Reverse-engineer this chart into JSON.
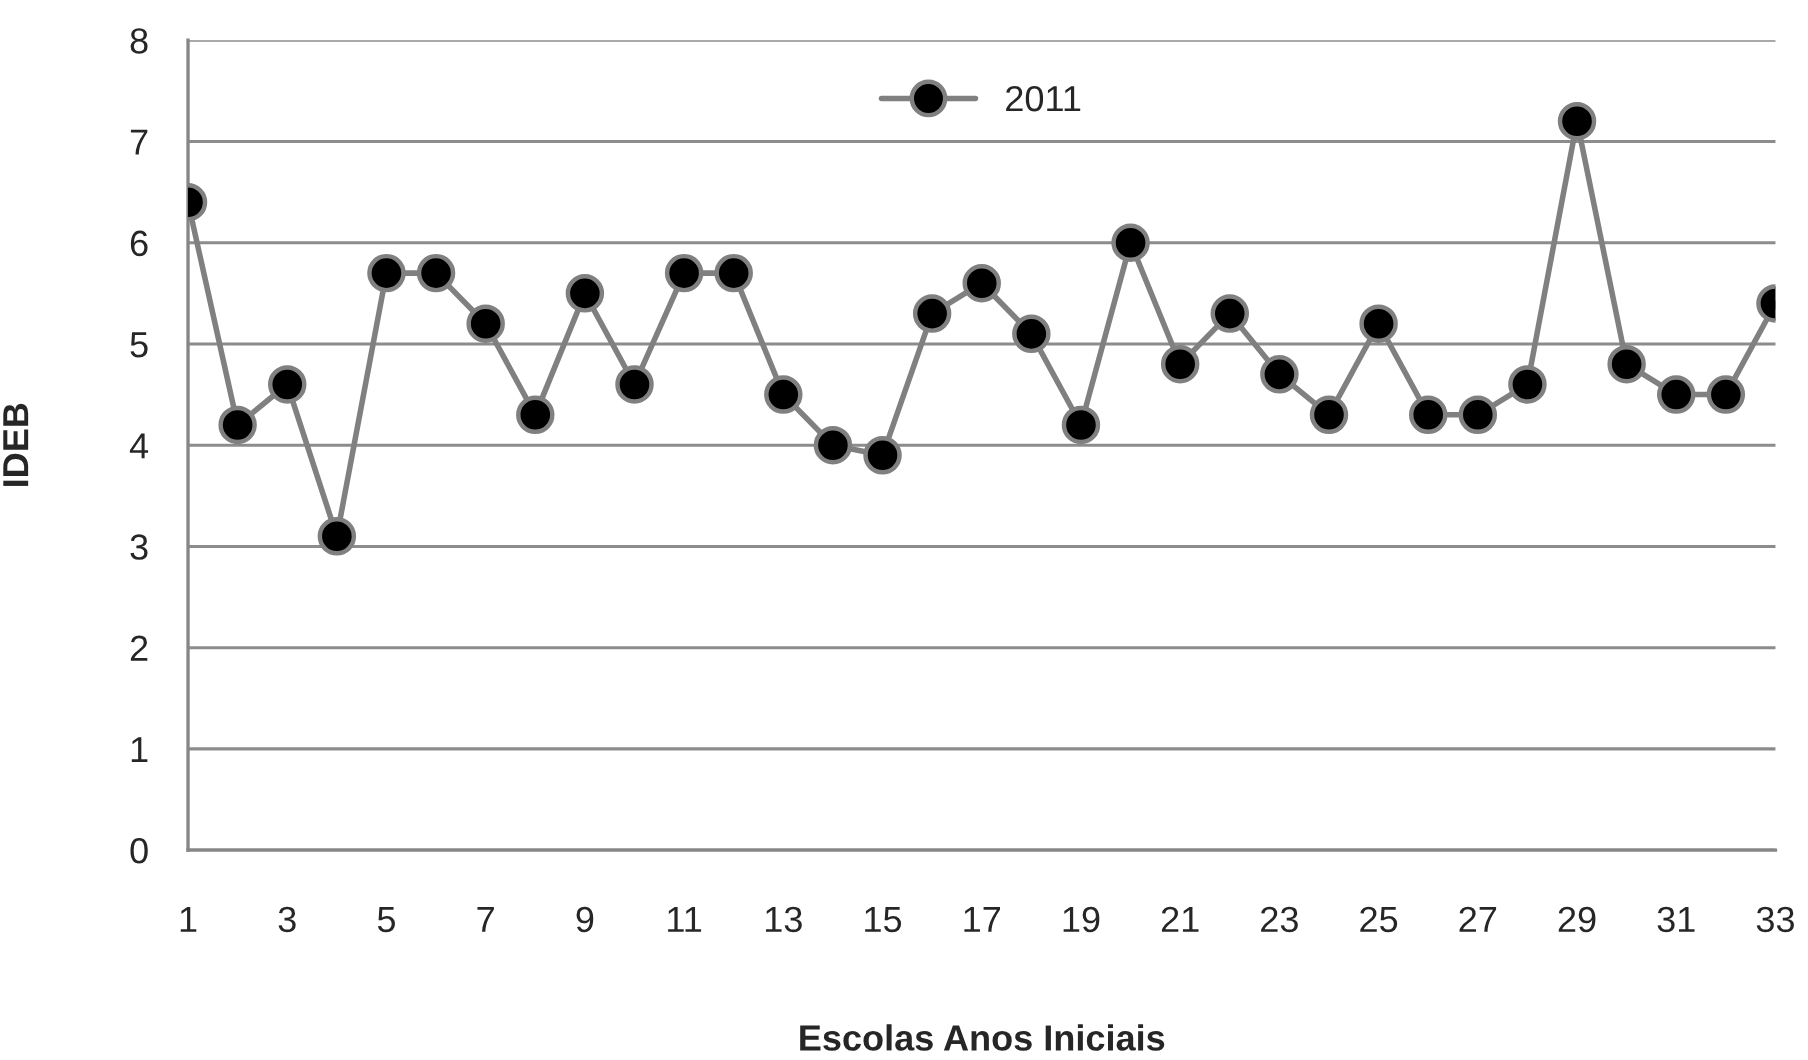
{
  "chart_data": {
    "type": "line",
    "categories": [
      "1",
      null,
      "3",
      null,
      "5",
      null,
      "7",
      null,
      "9",
      null,
      "11",
      null,
      "13",
      null,
      "15",
      null,
      "17",
      null,
      "19",
      null,
      "21",
      null,
      "23",
      null,
      "25",
      null,
      "27",
      null,
      "29",
      null,
      "31",
      null,
      "33"
    ],
    "series": [
      {
        "name": "2011",
        "color": "#808080",
        "values": [
          6.4,
          4.2,
          4.6,
          3.1,
          5.7,
          5.7,
          5.2,
          4.3,
          5.5,
          4.6,
          5.7,
          5.7,
          4.5,
          4.0,
          3.9,
          5.3,
          5.6,
          5.1,
          4.2,
          6.0,
          4.8,
          5.3,
          4.7,
          4.3,
          5.2,
          4.3,
          4.3,
          4.6,
          7.2,
          4.8,
          4.5,
          4.5,
          5.4
        ]
      }
    ],
    "xlabel": "Escolas Anos Iniciais",
    "ylabel": "IDEB",
    "ylim": [
      0,
      8
    ],
    "yticks": [
      0,
      1,
      2,
      3,
      4,
      5,
      6,
      7,
      8
    ],
    "grid": "y",
    "legend": "top",
    "marker": "circle",
    "line_style": "solid"
  }
}
